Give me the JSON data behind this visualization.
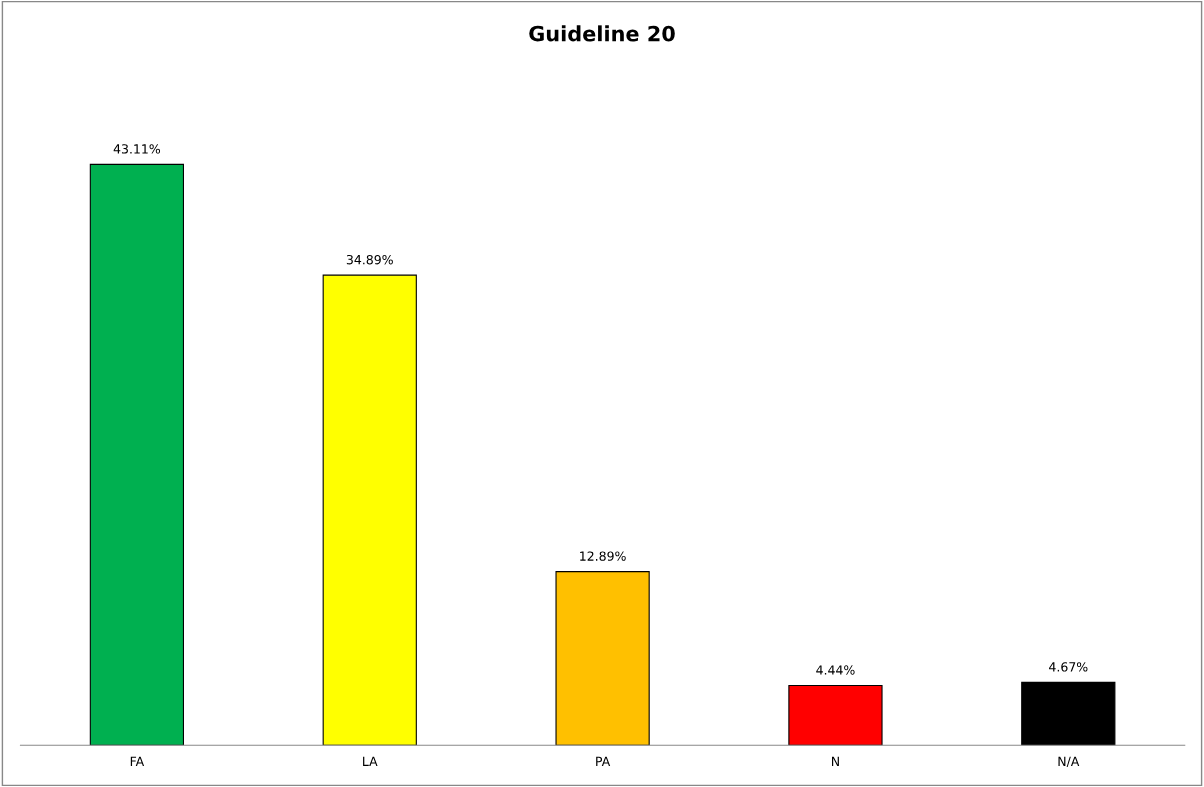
{
  "chart_data": {
    "type": "bar",
    "title": "Guideline 20",
    "categories": [
      "FA",
      "LA",
      "PA",
      "N",
      "N/A"
    ],
    "values": [
      43.11,
      34.89,
      12.89,
      4.44,
      4.67
    ],
    "colors": [
      "#00b050",
      "#ffff00",
      "#ffc000",
      "#ff0000",
      "#000000"
    ],
    "value_labels": [
      "43.11%",
      "34.89%",
      "12.89%",
      "4.44%",
      "4.67%"
    ]
  }
}
